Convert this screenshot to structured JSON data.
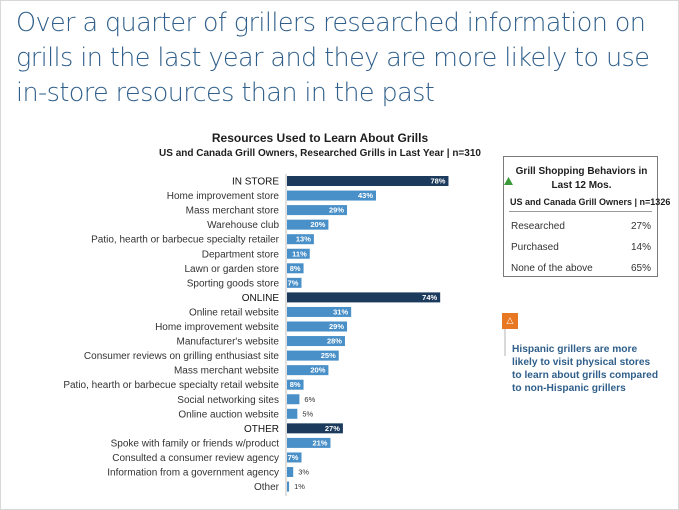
{
  "headline": "Over a quarter of grillers researched information on grills in the last year and they are more likely to use in-store resources than in the past",
  "chart_data": {
    "type": "bar",
    "orientation": "horizontal",
    "title": "Resources Used to Learn About Grills",
    "subtitle": "US and Canada Grill Owners, Researched Grills in Last Year | n=310",
    "categories": [
      "IN STORE",
      "Home improvement store",
      "Mass merchant store",
      "Warehouse club",
      "Patio, hearth or barbecue specialty retailer",
      "Department store",
      "Lawn or garden store",
      "Sporting goods store",
      "ONLINE",
      "Online retail website",
      "Home improvement website",
      "Manufacturer's website",
      "Consumer reviews on grilling enthusiast site",
      "Mass merchant website",
      "Patio, hearth or barbecue specialty retail website",
      "Social networking sites",
      "Online auction website",
      "OTHER",
      "Spoke with family or friends w/product",
      "Consulted a consumer review agency",
      "Information from a government agency",
      "Other"
    ],
    "values": [
      78,
      43,
      29,
      20,
      13,
      11,
      8,
      7,
      74,
      31,
      29,
      28,
      25,
      20,
      8,
      6,
      5,
      27,
      21,
      7,
      3,
      1
    ],
    "value_labels": [
      "78%",
      "43%",
      "29%",
      "20%",
      "13%",
      "11%",
      "8%",
      "7%",
      "74%",
      "31%",
      "29%",
      "28%",
      "25%",
      "20%",
      "8%",
      "6%",
      "5%",
      "27%",
      "21%",
      "7%",
      "3%",
      "1%"
    ],
    "group_headers": [
      "IN STORE",
      "ONLINE",
      "OTHER"
    ],
    "xlim": [
      0,
      100
    ],
    "colors": {
      "header": "#1b3a5c",
      "item": "#4a90c8",
      "up_arrow": "#3a9a3a"
    },
    "significant_up": [
      "IN STORE"
    ]
  },
  "shopping_box": {
    "title": "Grill Shopping Behaviors in Last 12 Mos.",
    "subtitle": "US and Canada Grill Owners | n=1326",
    "rows": [
      {
        "label": "Researched",
        "value": "27%"
      },
      {
        "label": "Purchased",
        "value": "14%"
      },
      {
        "label": "None of the above",
        "value": "65%"
      }
    ]
  },
  "callout": {
    "icon": "warning-triangle-icon",
    "text": "Hispanic grillers are more likely to visit physical stores to learn about grills compared to non-Hispanic grillers"
  }
}
